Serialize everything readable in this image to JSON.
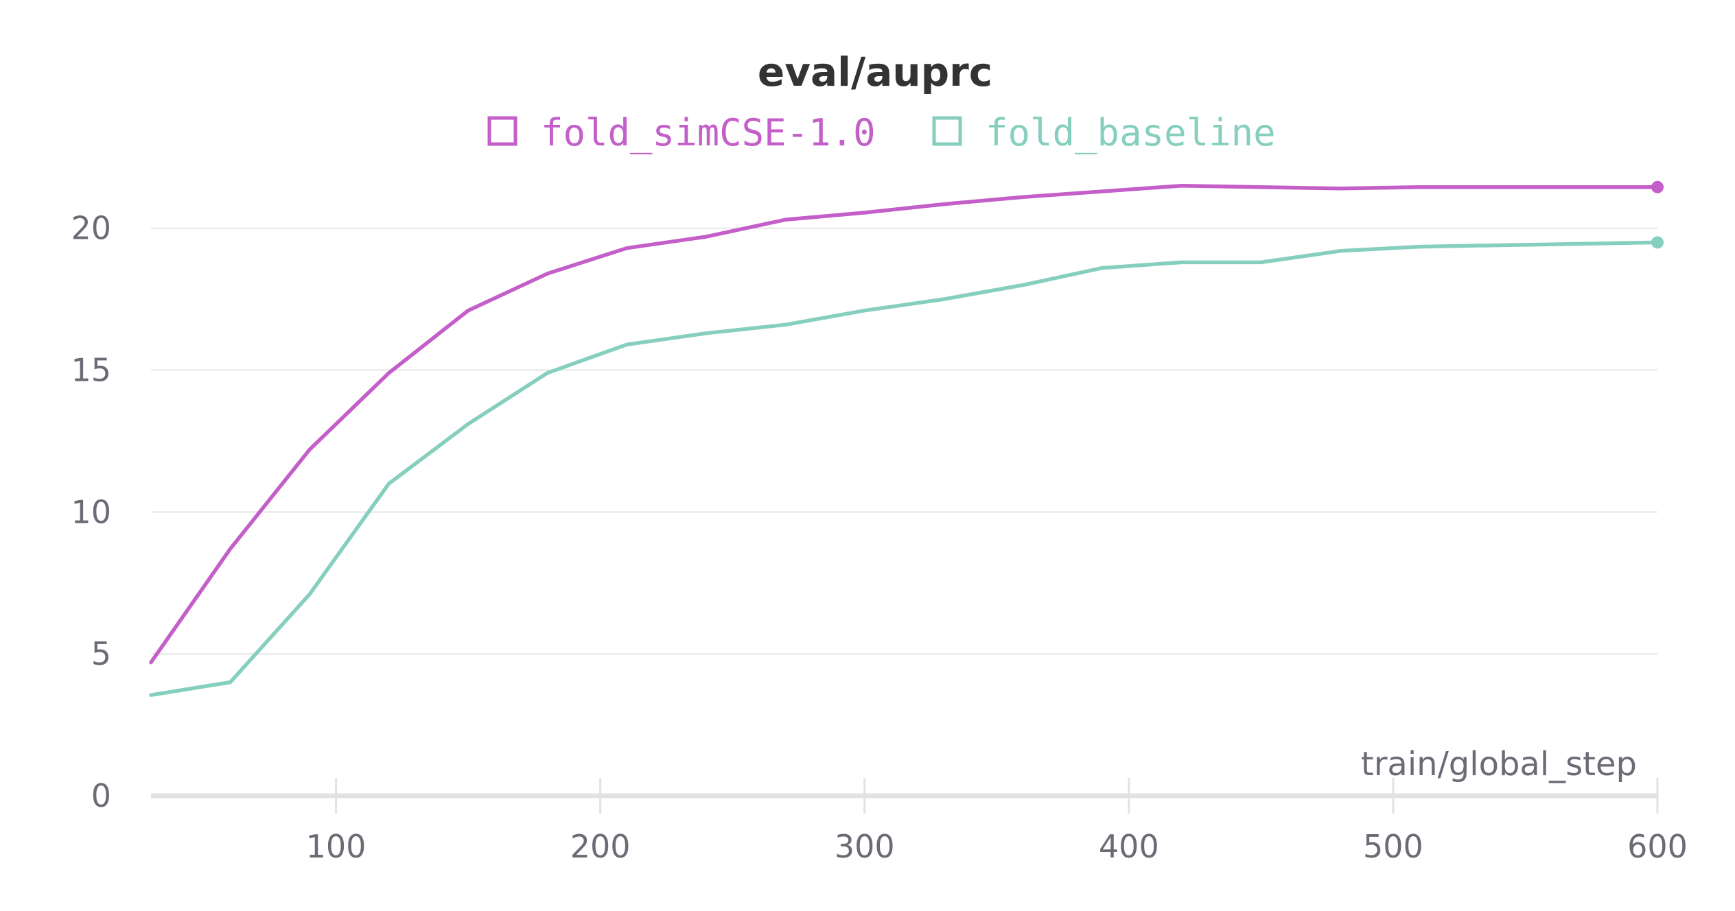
{
  "chart_data": {
    "type": "line",
    "title": "eval/auprc",
    "xlabel": "train/global_step",
    "ylabel": "",
    "xlim": [
      30,
      600
    ],
    "ylim": [
      0,
      22
    ],
    "x_ticks": [
      100,
      200,
      300,
      400,
      500,
      600
    ],
    "y_ticks": [
      0,
      5,
      10,
      15,
      20
    ],
    "grid": true,
    "legend_position": "top-center",
    "series": [
      {
        "name": "fold_simCSE-1.0",
        "color": "#c45ec8",
        "x": [
          30,
          60,
          90,
          120,
          150,
          180,
          210,
          240,
          270,
          300,
          330,
          360,
          390,
          420,
          450,
          480,
          510,
          540,
          570,
          600
        ],
        "y": [
          4.7,
          8.7,
          12.2,
          14.9,
          17.1,
          18.4,
          19.3,
          19.7,
          20.3,
          20.55,
          20.85,
          21.1,
          21.3,
          21.5,
          21.45,
          21.4,
          21.45,
          21.45,
          21.45,
          21.45
        ]
      },
      {
        "name": "fold_baseline",
        "color": "#86cfbe",
        "x": [
          30,
          60,
          90,
          120,
          150,
          180,
          210,
          240,
          270,
          300,
          330,
          360,
          390,
          420,
          450,
          480,
          510,
          540,
          570,
          600
        ],
        "y": [
          3.55,
          4.0,
          7.1,
          11.0,
          13.1,
          14.9,
          15.9,
          16.3,
          16.6,
          17.1,
          17.5,
          18.0,
          18.6,
          18.8,
          18.8,
          19.2,
          19.35,
          19.4,
          19.45,
          19.5
        ]
      }
    ]
  }
}
